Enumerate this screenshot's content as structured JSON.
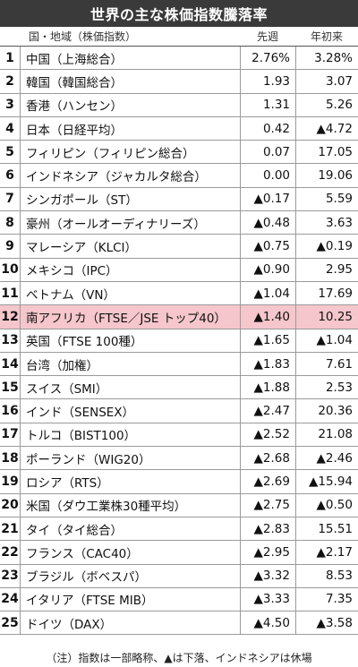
{
  "title": "世界の主な株価指数騰落率",
  "header": {
    "label": "国・地域（株価指数）",
    "week": "先週",
    "ytd": "年初来"
  },
  "rows": [
    {
      "rank": "1",
      "name": "中国（上海総合）",
      "week": "2.76%",
      "ytd": "3.28%"
    },
    {
      "rank": "2",
      "name": "韓国（韓国総合）",
      "week": "1.93",
      "ytd": "3.07"
    },
    {
      "rank": "3",
      "name": "香港（ハンセン）",
      "week": "1.31",
      "ytd": "5.26"
    },
    {
      "rank": "4",
      "name": "日本（日経平均）",
      "week": "0.42",
      "ytd": "▲4.72"
    },
    {
      "rank": "5",
      "name": "フィリピン（フィリピン総合）",
      "week": "0.07",
      "ytd": "17.05"
    },
    {
      "rank": "6",
      "name": "インドネシア（ジャカルタ総合）",
      "week": "0.00",
      "ytd": "19.06"
    },
    {
      "rank": "7",
      "name": "シンガポール（ST）",
      "week": "▲0.17",
      "ytd": "5.59"
    },
    {
      "rank": "8",
      "name": "豪州（オールオーディナリーズ）",
      "week": "▲0.48",
      "ytd": "3.63"
    },
    {
      "rank": "9",
      "name": "マレーシア（KLCI）",
      "week": "▲0.75",
      "ytd": "▲0.19"
    },
    {
      "rank": "10",
      "name": "メキシコ（IPC）",
      "week": "▲0.90",
      "ytd": "2.95"
    },
    {
      "rank": "11",
      "name": "ベトナム（VN）",
      "week": "▲1.04",
      "ytd": "17.69"
    },
    {
      "rank": "12",
      "name": "南アフリカ（FTSE／JSE トップ40）",
      "week": "▲1.40",
      "ytd": "10.25",
      "highlight": true
    },
    {
      "rank": "13",
      "name": "英国（FTSE 100種）",
      "week": "▲1.65",
      "ytd": "▲1.04"
    },
    {
      "rank": "14",
      "name": "台湾（加権）",
      "week": "▲1.83",
      "ytd": "7.61"
    },
    {
      "rank": "15",
      "name": "スイス（SMI）",
      "week": "▲1.88",
      "ytd": "2.53"
    },
    {
      "rank": "16",
      "name": "インド（SENSEX）",
      "week": "▲2.47",
      "ytd": "20.36"
    },
    {
      "rank": "17",
      "name": "トルコ（BIST100）",
      "week": "▲2.52",
      "ytd": "21.08"
    },
    {
      "rank": "18",
      "name": "ポーランド（WIG20）",
      "week": "▲2.68",
      "ytd": "▲2.46"
    },
    {
      "rank": "19",
      "name": "ロシア（RTS）",
      "week": "▲2.69",
      "ytd": "▲15.94"
    },
    {
      "rank": "20",
      "name": "米国（ダウ工業株30種平均）",
      "week": "▲2.75",
      "ytd": "▲0.50"
    },
    {
      "rank": "21",
      "name": "タイ（タイ総合）",
      "week": "▲2.83",
      "ytd": "15.51"
    },
    {
      "rank": "22",
      "name": "フランス（CAC40）",
      "week": "▲2.95",
      "ytd": "▲2.17"
    },
    {
      "rank": "23",
      "name": "ブラジル（ボベスパ）",
      "week": "▲3.32",
      "ytd": "8.53"
    },
    {
      "rank": "24",
      "name": "イタリア（FTSE MIB）",
      "week": "▲3.33",
      "ytd": "7.35"
    },
    {
      "rank": "25",
      "name": "ドイツ（DAX）",
      "week": "▲4.50",
      "ytd": "▲3.58"
    }
  ],
  "note": "（注）指数は一部略称、▲は下落、インドネシアは休場",
  "colors": {
    "title_bg": "#3a3a3a",
    "highlight": "#f5c6cb"
  }
}
